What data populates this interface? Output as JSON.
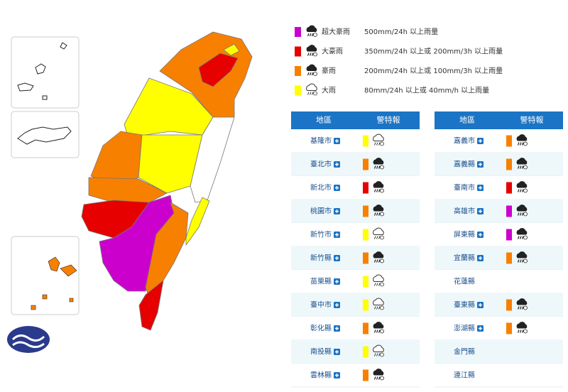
{
  "legend": [
    {
      "level": "超大豪雨",
      "desc": "500mm/24h 以上雨量",
      "color": "#cc00cc"
    },
    {
      "level": "大豪雨",
      "desc": "350mm/24h 以上或 200mm/3h 以上雨量",
      "color": "#e60000"
    },
    {
      "level": "豪雨",
      "desc": "200mm/24h 以上或 100mm/3h 以上雨量",
      "color": "#f88000"
    },
    {
      "level": "大雨",
      "desc": "80mm/24h 以上或 40mm/h 以上雨量",
      "color": "#ffff00"
    }
  ],
  "tables": [
    {
      "headers": [
        "地區",
        "警特報"
      ],
      "rows": [
        {
          "name": "基隆市",
          "color": "#ffff00"
        },
        {
          "name": "臺北市",
          "color": "#f88000"
        },
        {
          "name": "新北市",
          "color": "#e60000"
        },
        {
          "name": "桃園市",
          "color": "#f88000"
        },
        {
          "name": "新竹市",
          "color": "#ffff00"
        },
        {
          "name": "新竹縣",
          "color": "#f88000"
        },
        {
          "name": "苗栗縣",
          "color": "#ffff00"
        },
        {
          "name": "臺中市",
          "color": "#ffff00"
        },
        {
          "name": "彰化縣",
          "color": "#f88000"
        },
        {
          "name": "南投縣",
          "color": "#ffff00"
        },
        {
          "name": "雲林縣",
          "color": "#f88000"
        }
      ]
    },
    {
      "headers": [
        "地區",
        "警特報"
      ],
      "rows": [
        {
          "name": "嘉義市",
          "color": "#f88000"
        },
        {
          "name": "嘉義縣",
          "color": "#f88000"
        },
        {
          "name": "臺南市",
          "color": "#e60000"
        },
        {
          "name": "高雄市",
          "color": "#cc00cc"
        },
        {
          "name": "屏東縣",
          "color": "#cc00cc"
        },
        {
          "name": "宜蘭縣",
          "color": "#f88000"
        },
        {
          "name": "花蓮縣",
          "color": null
        },
        {
          "name": "臺東縣",
          "color": "#f88000"
        },
        {
          "name": "澎湖縣",
          "color": "#f88000"
        },
        {
          "name": "金門縣",
          "color": null
        },
        {
          "name": "連江縣",
          "color": null
        }
      ]
    }
  ]
}
